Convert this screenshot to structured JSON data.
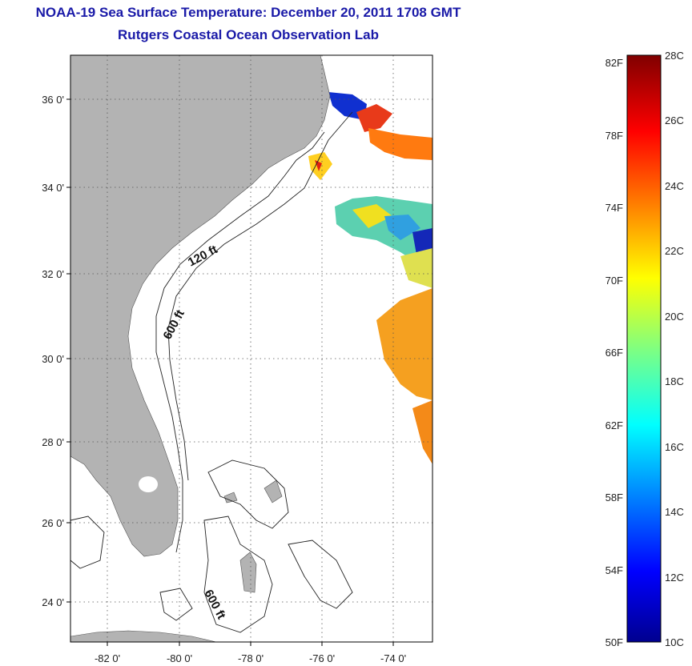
{
  "title": {
    "line1": "NOAA-19 Sea Surface Temperature:  December 20, 2011 1708 GMT",
    "line2": "Rutgers Coastal Ocean Observation Lab"
  },
  "map": {
    "lat_labels": [
      "36 0'",
      "34 0'",
      "32 0'",
      "30 0'",
      "28 0'",
      "26 0'",
      "24 0'"
    ],
    "lon_labels": [
      "-82 0'",
      "-80 0'",
      "-78 0'",
      "-76 0'",
      "-74 0'"
    ],
    "contour_labels": [
      "120 ft",
      "600 ft",
      "600 ft"
    ],
    "land_color": "#b3b3b3",
    "grid": "dotted"
  },
  "colorbar": {
    "fahrenheit_labels": [
      "82F",
      "78F",
      "74F",
      "70F",
      "66F",
      "62F",
      "58F",
      "54F",
      "50F"
    ],
    "celsius_labels": [
      "28C",
      "26C",
      "24C",
      "22C",
      "20C",
      "18C",
      "16C",
      "14C",
      "12C",
      "10C"
    ],
    "colormap": "jet",
    "range_c": [
      10,
      28
    ]
  }
}
